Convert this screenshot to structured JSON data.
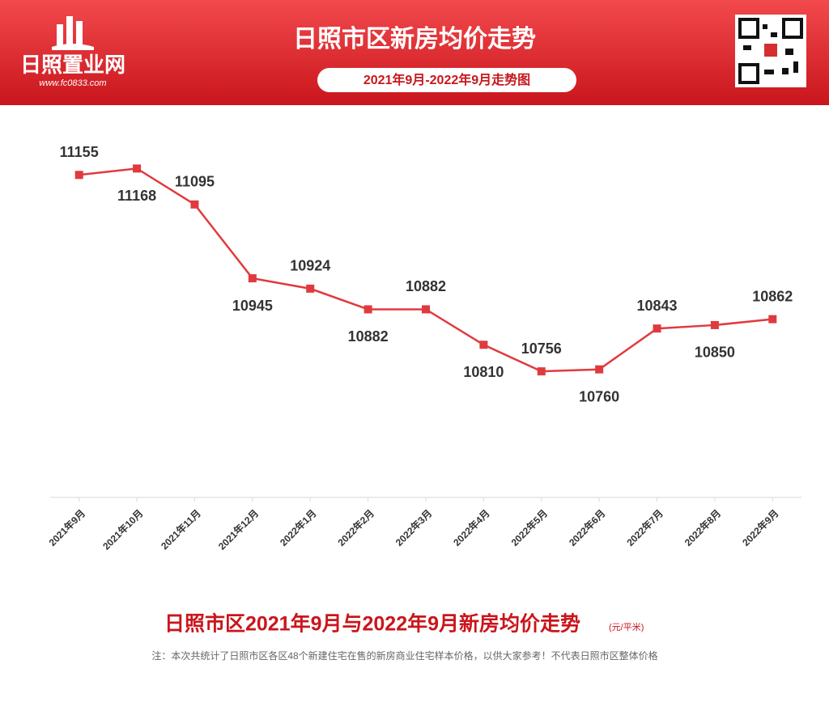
{
  "header": {
    "logo_name": "日照置业网",
    "logo_url": "www.fc0833.com",
    "title": "日照市区新房均价走势",
    "subtitle": "2021年9月-2022年9月走势图"
  },
  "chart_data": {
    "type": "line",
    "categories": [
      "2021年9月",
      "2021年10月",
      "2021年11月",
      "2021年12月",
      "2022年1月",
      "2022年2月",
      "2022年3月",
      "2022年4月",
      "2022年5月",
      "2022年6月",
      "2022年7月",
      "2022年8月",
      "2022年9月"
    ],
    "values": [
      11155,
      11168,
      11095,
      10945,
      10924,
      10882,
      10882,
      10810,
      10756,
      10760,
      10843,
      10850,
      10862
    ],
    "color": "#e03a3e",
    "ylim": [
      10500,
      11300
    ]
  },
  "footer": {
    "title": "日照市区2021年9月与2022年9月新房均价走势",
    "unit": "(元/平米)",
    "note": "注：本次共统计了日照市区各区48个新建住宅在售的新房商业住宅样本价格，以供大家参考！不代表日照市区整体价格"
  }
}
